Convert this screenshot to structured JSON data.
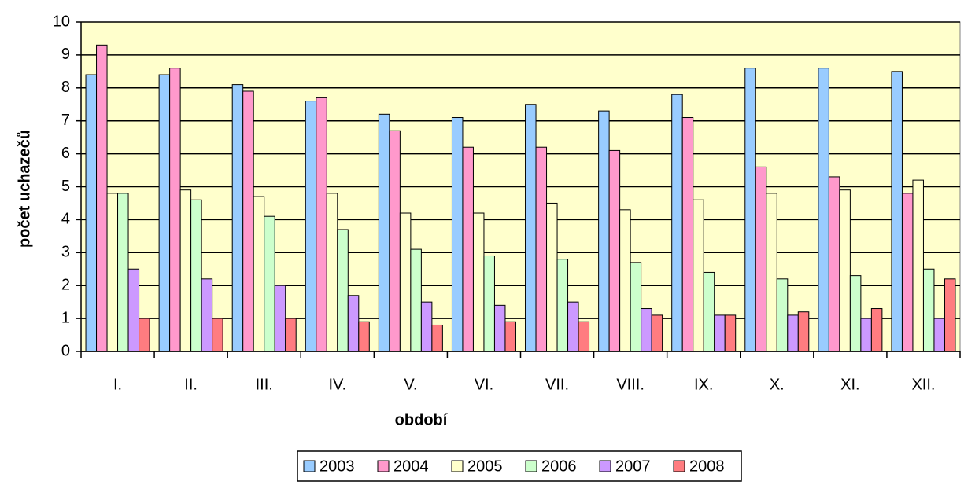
{
  "chart_data": {
    "type": "bar",
    "x_label": "období",
    "y_label": "počet uchazečů",
    "categories": [
      "I.",
      "II.",
      "III.",
      "IV.",
      "V.",
      "VI.",
      "VII.",
      "VIII.",
      "IX.",
      "X.",
      "XI.",
      "XII."
    ],
    "series": [
      {
        "name": "2003",
        "color": "#99ccff",
        "values": [
          8.4,
          8.4,
          8.1,
          7.6,
          7.2,
          7.1,
          7.5,
          7.3,
          7.8,
          8.6,
          8.6,
          8.5
        ]
      },
      {
        "name": "2004",
        "color": "#ff99cc",
        "values": [
          9.3,
          8.6,
          7.9,
          7.7,
          6.7,
          6.2,
          6.2,
          6.1,
          7.1,
          5.6,
          5.3,
          4.8
        ]
      },
      {
        "name": "2005",
        "color": "#ffffcc",
        "values": [
          4.8,
          4.9,
          4.7,
          4.8,
          4.2,
          4.2,
          4.5,
          4.3,
          4.6,
          4.8,
          4.9,
          5.2
        ]
      },
      {
        "name": "2006",
        "color": "#ccffcc",
        "values": [
          4.8,
          4.6,
          4.1,
          3.7,
          3.1,
          2.9,
          2.8,
          2.7,
          2.4,
          2.2,
          2.3,
          2.5
        ]
      },
      {
        "name": "2007",
        "color": "#cc99ff",
        "values": [
          2.5,
          2.2,
          2.0,
          1.7,
          1.5,
          1.4,
          1.5,
          1.3,
          1.1,
          1.1,
          1.0,
          1.0
        ]
      },
      {
        "name": "2008",
        "color": "#ff7c80",
        "values": [
          1.0,
          1.0,
          1.0,
          0.9,
          0.8,
          0.9,
          0.9,
          1.1,
          1.1,
          1.2,
          1.3,
          2.2
        ]
      }
    ],
    "ylim": [
      0,
      10
    ],
    "yticks": [
      0,
      1,
      2,
      3,
      4,
      5,
      6,
      7,
      8,
      9,
      10
    ],
    "grid": true,
    "plot_background": "#ffffcc",
    "legend": "bottom"
  }
}
